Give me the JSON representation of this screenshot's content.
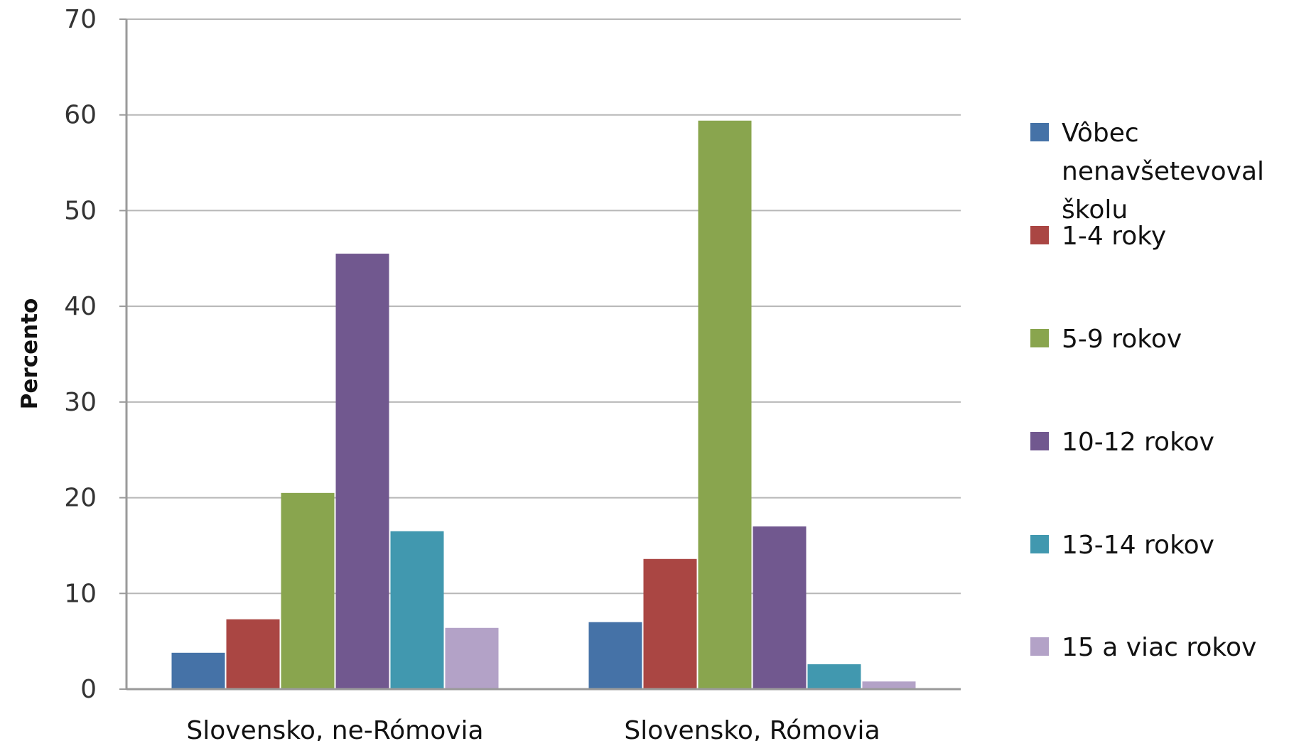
{
  "chart_data": {
    "type": "bar",
    "title": "",
    "xlabel": "",
    "ylabel": "Percento",
    "ylim": [
      0,
      70
    ],
    "yticks": [
      0,
      10,
      20,
      30,
      40,
      50,
      60,
      70
    ],
    "grid": true,
    "legend_position": "right",
    "categories": [
      "Slovensko, ne-Rómovia",
      "Slovensko, Rómovia"
    ],
    "series": [
      {
        "name": "Vôbec nenavšetevoval školu",
        "color": "#4572A7",
        "values": [
          3.8,
          7.0
        ]
      },
      {
        "name": "1-4 roky",
        "color": "#AA4643",
        "values": [
          7.3,
          13.6
        ]
      },
      {
        "name": "5-9 rokov",
        "color": "#89A54E",
        "values": [
          20.5,
          59.4
        ]
      },
      {
        "name": "10-12 rokov",
        "color": "#71588F",
        "values": [
          45.5,
          17.0
        ]
      },
      {
        "name": "13-14 rokov",
        "color": "#4198AF",
        "values": [
          16.5,
          2.6
        ]
      },
      {
        "name": "15 a viac rokov",
        "color": "#B3A2C7",
        "values": [
          6.4,
          0.8
        ]
      }
    ],
    "legend_lines": [
      [
        "Vôbec",
        "nenavšetevoval",
        "školu"
      ],
      [
        "1-4 roky"
      ],
      [
        "5-9 rokov"
      ],
      [
        "10-12 rokov"
      ],
      [
        "13-14 rokov"
      ],
      [
        "15 a viac rokov"
      ]
    ]
  }
}
